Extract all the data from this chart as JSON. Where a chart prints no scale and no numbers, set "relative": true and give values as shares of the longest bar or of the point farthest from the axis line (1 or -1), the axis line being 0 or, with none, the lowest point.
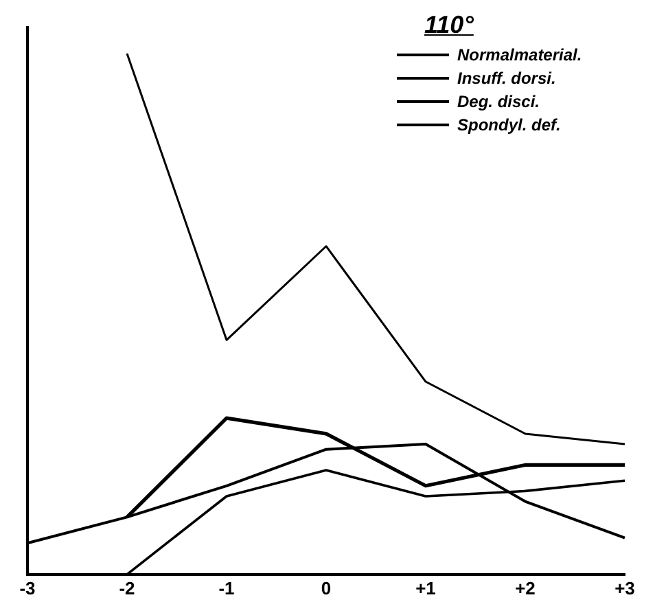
{
  "chart_data": {
    "type": "line",
    "title": "110°",
    "relative": true,
    "legend": "top right",
    "marker": "none",
    "line_style": "solid",
    "categories": [
      "-3",
      "-2",
      "-1",
      "0",
      "+1",
      "+2",
      "+3"
    ],
    "series": [
      {
        "name": "Normalmaterial.",
        "color": "#000000",
        "values": [
          null,
          1.0,
          0.45,
          0.63,
          0.37,
          0.27,
          0.25
        ]
      },
      {
        "name": "Insuff. dorsi.",
        "color": "#000000",
        "values": [
          null,
          0.11,
          0.3,
          0.27,
          0.17,
          0.21,
          0.21
        ]
      },
      {
        "name": "Deg. disci.",
        "color": "#000000",
        "values": [
          0.06,
          0.11,
          0.17,
          0.24,
          0.25,
          0.14,
          0.07
        ]
      },
      {
        "name": "Spondyl. def.",
        "color": "#000000",
        "values": [
          null,
          0,
          0.15,
          0.2,
          0.15,
          0.16,
          0.18
        ]
      }
    ]
  }
}
